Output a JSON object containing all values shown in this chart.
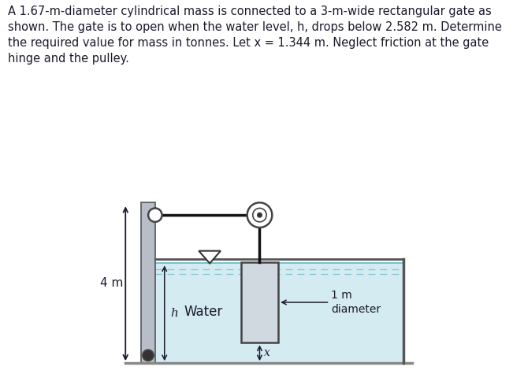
{
  "title_text": "A 1.67-m-diameter cylindrical mass is connected to a 3-m-wide rectangular gate as\nshown. The gate is to open when the water level, h, drops below 2.582 m. Determine\nthe required value for mass in tonnes. Let x = 1.344 m. Neglect friction at the gate\nhinge and the pulley.",
  "title_fontsize": 10.5,
  "water_color": "#b8dfe8",
  "water_alpha": 0.6,
  "wall_color": "#b8bec8",
  "wall_edge": "#555555",
  "gate_face": "#d0d8e0",
  "gate_edge": "#444444",
  "rope_color": "#111111",
  "floor_color": "#888888",
  "text_color": "#1a1a2e",
  "right_wall_color": "#b8bec8",
  "label_4m": "4 m",
  "label_water": "Water",
  "label_h": "h",
  "label_x": "x",
  "label_1m": "1 m",
  "label_diameter": "diameter",
  "fig_width": 6.51,
  "fig_height": 4.75,
  "dpi": 100
}
